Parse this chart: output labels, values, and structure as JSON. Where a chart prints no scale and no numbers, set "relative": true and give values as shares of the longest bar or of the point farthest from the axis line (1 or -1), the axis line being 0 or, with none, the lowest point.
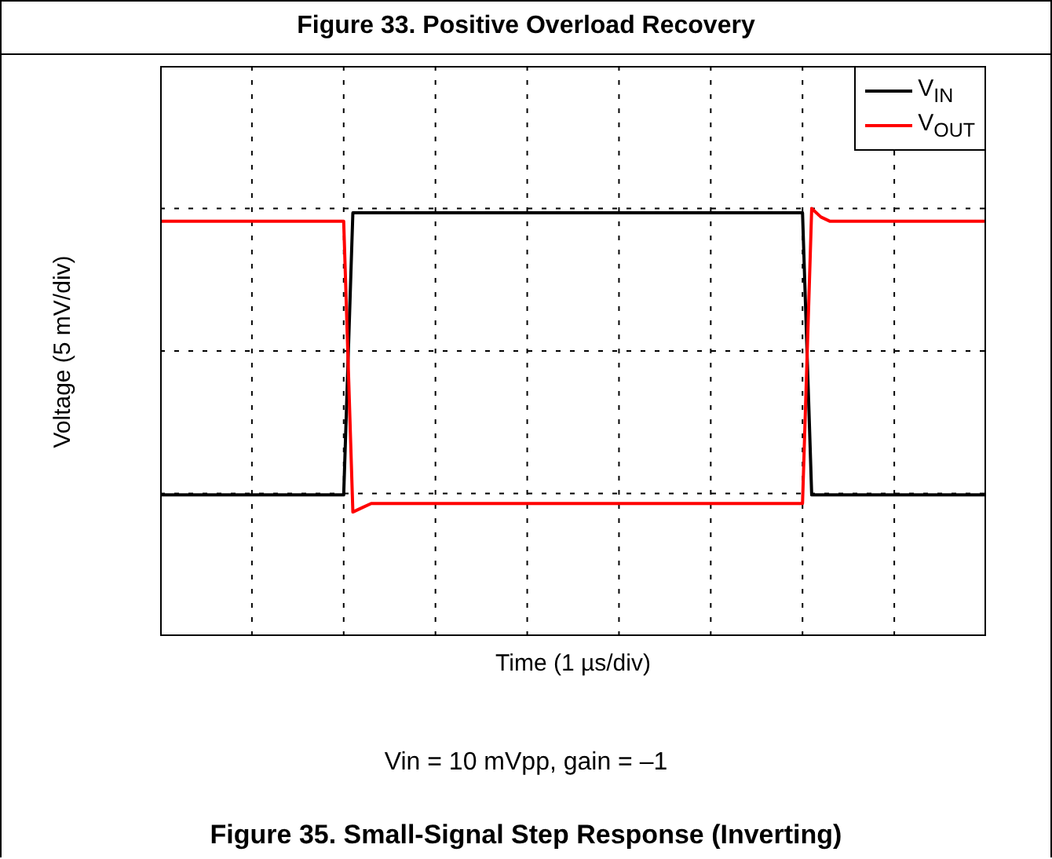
{
  "chart_data": {
    "type": "line",
    "relative": true,
    "title": "Figure 33. Positive Overload Recovery",
    "xlabel": "Time (1 µs/div)",
    "ylabel": "Voltage (5 mV/div)",
    "annotations": [
      "Vin = 10 mVpp, gain = –1",
      "Figure 35. Small-Signal Step Response (Inverting)"
    ],
    "grid": true,
    "legend": "top right",
    "categories": [
      null,
      null,
      null,
      null,
      null,
      null,
      null,
      null,
      null,
      null,
      null,
      null,
      null,
      null,
      null,
      null,
      null,
      null,
      null,
      null,
      null,
      null,
      null,
      null,
      null,
      null,
      null,
      null,
      null,
      null,
      null,
      null,
      null,
      null,
      null,
      null,
      null,
      null,
      null,
      null,
      null,
      null,
      null,
      null,
      null,
      null,
      null,
      null,
      null,
      null,
      null,
      null,
      null,
      null,
      null,
      null,
      null,
      null,
      null,
      null,
      null,
      null,
      null,
      null,
      null,
      null,
      null,
      null,
      null,
      null,
      null,
      null,
      null,
      null,
      null,
      null,
      null,
      null,
      null,
      null,
      null,
      null,
      null,
      null,
      null,
      null,
      null,
      null,
      null,
      null,
      null
    ],
    "series": [
      {
        "name": "V$_{IN}$",
        "color": "#000000",
        "values": [
          0.33,
          0.33,
          0.33,
          0.33,
          0.33,
          0.33,
          0.33,
          0.33,
          0.33,
          0.33,
          0.33,
          0.33,
          0.33,
          0.33,
          0.33,
          0.33,
          0.33,
          0.33,
          0.33,
          0.33,
          0.33,
          0.99,
          0.99,
          0.99,
          0.99,
          0.99,
          0.99,
          0.99,
          0.99,
          0.99,
          0.99,
          0.99,
          0.99,
          0.99,
          0.99,
          0.99,
          0.99,
          0.99,
          0.99,
          0.99,
          0.99,
          0.99,
          0.99,
          0.99,
          0.99,
          0.99,
          0.99,
          0.99,
          0.99,
          0.99,
          0.99,
          0.99,
          0.99,
          0.99,
          0.99,
          0.99,
          0.99,
          0.99,
          0.99,
          0.99,
          0.99,
          0.99,
          0.99,
          0.99,
          0.99,
          0.99,
          0.99,
          0.99,
          0.99,
          0.99,
          0.99,
          0.33,
          0.33,
          0.33,
          0.33,
          0.33,
          0.33,
          0.33,
          0.33,
          0.33,
          0.33,
          0.33,
          0.33,
          0.33,
          0.33,
          0.33,
          0.33,
          0.33,
          0.33,
          0.33,
          0.33
        ]
      },
      {
        "name": "V$_{OUT}$",
        "color": "#ff0000",
        "values": [
          0.97,
          0.97,
          0.97,
          0.97,
          0.97,
          0.97,
          0.97,
          0.97,
          0.97,
          0.97,
          0.97,
          0.97,
          0.97,
          0.97,
          0.97,
          0.97,
          0.97,
          0.97,
          0.97,
          0.97,
          0.97,
          0.29,
          0.3,
          0.31,
          0.31,
          0.31,
          0.31,
          0.31,
          0.31,
          0.31,
          0.31,
          0.31,
          0.31,
          0.31,
          0.31,
          0.31,
          0.31,
          0.31,
          0.31,
          0.31,
          0.31,
          0.31,
          0.31,
          0.31,
          0.31,
          0.31,
          0.31,
          0.31,
          0.31,
          0.31,
          0.31,
          0.31,
          0.31,
          0.31,
          0.31,
          0.31,
          0.31,
          0.31,
          0.31,
          0.31,
          0.31,
          0.31,
          0.31,
          0.31,
          0.31,
          0.31,
          0.31,
          0.31,
          0.31,
          0.31,
          0.31,
          1,
          0.98,
          0.97,
          0.97,
          0.97,
          0.97,
          0.97,
          0.97,
          0.97,
          0.97,
          0.97,
          0.97,
          0.97,
          0.97,
          0.97,
          0.97,
          0.97,
          0.97,
          0.97,
          0.97
        ]
      }
    ]
  }
}
